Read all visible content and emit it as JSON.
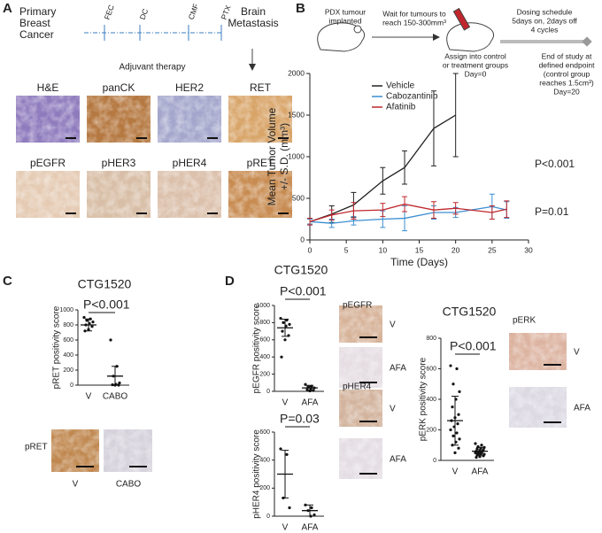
{
  "panel_labels": [
    "A",
    "B",
    "C",
    "D"
  ],
  "panel_a": {
    "origin": [
      "Primary",
      "Breast",
      "Cancer"
    ],
    "regimens": [
      "FEC",
      "DC",
      "CMF",
      "PTX"
    ],
    "outcome": [
      "Brain",
      "Metastasis"
    ],
    "caption": "Adjuvant therapy",
    "stains": [
      "H&E",
      "panCK",
      "HER2",
      "RET",
      "pEGFR",
      "pHER3",
      "pHER4",
      "pRET"
    ]
  },
  "panel_b_schematic": {
    "implant": [
      "PDX tumour",
      "implanted"
    ],
    "wait": [
      "Wait for tumours to",
      "reach 150-300mm³"
    ],
    "assign": [
      "Assign into control",
      "or treatment groups",
      "Day=0"
    ],
    "dosing": [
      "Dosing schedule",
      "5days on, 2days off",
      "4 cycles"
    ],
    "endpoint": [
      "End of study at",
      "defined  endpoint",
      "(control group",
      "reaches 1.5cm³)",
      "Day=20"
    ]
  },
  "panel_c_images": {
    "stain": "pRET",
    "labels": [
      "V",
      "CABO"
    ]
  },
  "panel_d_images": [
    {
      "stain": "pEGFR",
      "labels": [
        "V",
        "AFA"
      ]
    },
    {
      "stain": "pHER4",
      "labels": [
        "V",
        "AFA"
      ]
    },
    {
      "stain": "pERK",
      "labels": [
        "V",
        "AFA"
      ]
    }
  ],
  "chart_data": [
    {
      "type": "line",
      "ylabel": [
        "Mean Tumor Volume",
        "+/- S.D. (mm³)"
      ],
      "xlabel": "Time (Days)",
      "xlim": [
        0,
        30
      ],
      "xticks": [
        0,
        5,
        10,
        15,
        20,
        25,
        30
      ],
      "ylim": [
        0,
        2000
      ],
      "yticks": [
        0,
        500,
        1000,
        1500,
        2000
      ],
      "series": [
        {
          "name": "Vehicle",
          "color": "#222222",
          "x": [
            0,
            3,
            6,
            10,
            13,
            17,
            20
          ],
          "values": [
            220,
            310,
            420,
            710,
            870,
            1340,
            1500
          ],
          "errors": [
            30,
            100,
            150,
            160,
            200,
            450,
            500
          ]
        },
        {
          "name": "Cabozantinib",
          "color": "#3b8ed0",
          "x": [
            0,
            3,
            6,
            10,
            13,
            17,
            20,
            25,
            27
          ],
          "values": [
            220,
            200,
            230,
            250,
            260,
            330,
            330,
            400,
            360
          ],
          "errors": [
            30,
            50,
            50,
            100,
            150,
            80,
            60,
            150,
            100
          ]
        },
        {
          "name": "Afatinib",
          "color": "#c0272d",
          "x": [
            0,
            3,
            6,
            10,
            13,
            17,
            20,
            25,
            27
          ],
          "values": [
            220,
            300,
            350,
            360,
            430,
            360,
            380,
            330,
            370
          ],
          "errors": [
            40,
            60,
            100,
            80,
            90,
            100,
            70,
            80,
            100
          ]
        }
      ],
      "annotations": [
        {
          "text": "P<0.001",
          "color": "#2a6fb5"
        },
        {
          "text": "P=0.01",
          "color": "#c0272d"
        }
      ]
    },
    {
      "type": "strip",
      "title": "CTG1520",
      "ylabel": "pRET positivity score",
      "categories": [
        "V",
        "CABO"
      ],
      "points": [
        [
          900,
          880,
          860,
          840,
          820,
          800,
          780,
          740,
          720
        ],
        [
          600,
          250,
          120,
          30,
          10,
          5,
          0,
          0
        ]
      ],
      "means": [
        800,
        120
      ],
      "sds": [
        80,
        130
      ],
      "ylim": [
        0,
        1000
      ],
      "yticks": [
        0,
        200,
        400,
        600,
        800,
        1000
      ],
      "annotation": "P<0.001"
    },
    {
      "type": "strip",
      "title": "CTG1520",
      "ylabel": "pEGFR positivity score",
      "categories": [
        "V",
        "AFA"
      ],
      "points": [
        [
          850,
          830,
          800,
          780,
          760,
          700,
          650,
          600,
          400
        ],
        [
          80,
          60,
          50,
          40,
          30,
          20,
          10,
          5
        ]
      ],
      "means": [
        740,
        40
      ],
      "sds": [
        100,
        30
      ],
      "ylim": [
        0,
        1000
      ],
      "yticks": [
        0,
        200,
        400,
        600,
        800,
        1000
      ],
      "annotation": "P<0.001"
    },
    {
      "type": "strip",
      "ylabel": "pHER4  positivity score",
      "categories": [
        "V",
        "AFA"
      ],
      "points": [
        [
          480,
          440,
          130,
          60
        ],
        [
          80,
          60,
          40,
          10,
          0
        ]
      ],
      "means": [
        300,
        40
      ],
      "sds": [
        170,
        40
      ],
      "ylim": [
        0,
        600
      ],
      "yticks": [
        0,
        200,
        400,
        600
      ],
      "annotation": "P=0.03"
    },
    {
      "type": "strip",
      "title": "CTG1520",
      "ylabel": "pERK positivity score",
      "categories": [
        "V",
        "AFA"
      ],
      "points": [
        [
          620,
          600,
          500,
          450,
          400,
          350,
          300,
          280,
          260,
          240,
          220,
          200,
          180,
          160,
          140,
          120,
          100,
          80,
          50
        ],
        [
          110,
          100,
          90,
          85,
          80,
          75,
          70,
          65,
          60,
          60,
          55,
          50,
          50,
          45,
          40,
          40,
          35,
          30,
          25,
          20
        ]
      ],
      "means": [
        260,
        60
      ],
      "sds": [
        160,
        25
      ],
      "ylim": [
        0,
        800
      ],
      "yticks": [
        0,
        200,
        400,
        600,
        800
      ],
      "annotation": "P<0.001"
    }
  ]
}
